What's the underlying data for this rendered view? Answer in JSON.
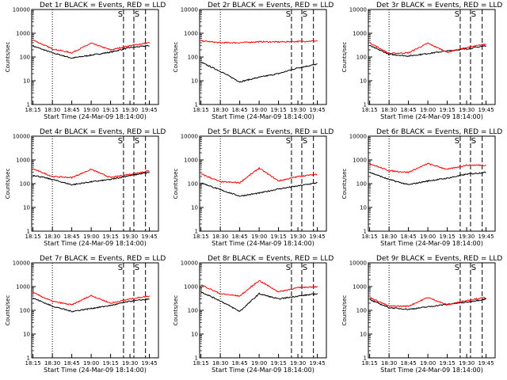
{
  "chart_data": [
    {
      "type": "line",
      "title": "Det 1r BLACK = Events, RED = LLD",
      "xlabel": "Start Time (24-Mar-09 18:14:00)",
      "ylabel": "Counts/sec",
      "yscale": "log",
      "ylim": [
        1,
        10000
      ],
      "x": [
        "18:15",
        "18:30",
        "18:45",
        "19:00",
        "19:15",
        "19:30",
        "19:45"
      ],
      "series": [
        {
          "name": "BLACK = Events",
          "color": "#000000",
          "values": [
            290,
            150,
            90,
            120,
            160,
            250,
            300
          ]
        },
        {
          "name": "RED = LLD",
          "color": "#ff0000",
          "values": [
            520,
            220,
            150,
            380,
            200,
            300,
            400
          ]
        }
      ],
      "markers": [
        "S",
        "S"
      ],
      "vlines_dotted": [
        "18:30"
      ],
      "vlines_dashed": [
        "19:25",
        "19:33",
        "19:42"
      ]
    },
    {
      "type": "line",
      "title": "Det 2r BLACK = Events, RED = LLD",
      "xlabel": "Start Time (24-Mar-09 18:14:00)",
      "ylabel": "Counts/sec",
      "yscale": "log",
      "ylim": [
        1,
        10000
      ],
      "x": [
        "18:15",
        "18:30",
        "18:45",
        "19:00",
        "19:15",
        "19:30",
        "19:45"
      ],
      "series": [
        {
          "name": "BLACK = Events",
          "color": "#000000",
          "values": [
            60,
            25,
            9,
            14,
            20,
            35,
            50
          ]
        },
        {
          "name": "RED = LLD",
          "color": "#ff0000",
          "values": [
            480,
            400,
            400,
            440,
            430,
            450,
            480
          ]
        }
      ],
      "markers": [
        "S",
        "S"
      ],
      "vlines_dotted": [
        "18:30"
      ],
      "vlines_dashed": [
        "19:25",
        "19:33",
        "19:42"
      ]
    },
    {
      "type": "line",
      "title": "Det 3r BLACK = Events, RED = LLD",
      "xlabel": "Start Time (24-Mar-09 18:14:00)",
      "ylabel": "Counts/sec",
      "yscale": "log",
      "ylim": [
        1,
        10000
      ],
      "x": [
        "18:15",
        "18:30",
        "18:45",
        "19:00",
        "19:15",
        "19:30",
        "19:45"
      ],
      "series": [
        {
          "name": "BLACK = Events",
          "color": "#000000",
          "values": [
            300,
            130,
            110,
            140,
            180,
            220,
            300
          ]
        },
        {
          "name": "RED = LLD",
          "color": "#ff0000",
          "values": [
            400,
            140,
            150,
            380,
            160,
            250,
            350
          ]
        }
      ],
      "markers": [
        "S",
        "S"
      ],
      "vlines_dotted": [
        "18:30"
      ],
      "vlines_dashed": [
        "19:25",
        "19:33",
        "19:42"
      ]
    },
    {
      "type": "line",
      "title": "Det 4r BLACK = Events, RED = LLD",
      "xlabel": "Start Time (24-Mar-09 18:14:00)",
      "ylabel": "Counts/sec",
      "yscale": "log",
      "ylim": [
        1,
        10000
      ],
      "x": [
        "18:15",
        "18:30",
        "18:45",
        "19:00",
        "19:15",
        "19:30",
        "19:45"
      ],
      "series": [
        {
          "name": "BLACK = Events",
          "color": "#000000",
          "values": [
            230,
            150,
            90,
            120,
            150,
            220,
            300
          ]
        },
        {
          "name": "RED = LLD",
          "color": "#ff0000",
          "values": [
            420,
            200,
            180,
            400,
            180,
            250,
            350
          ]
        }
      ],
      "markers": [
        "S",
        "S"
      ],
      "vlines_dotted": [
        "18:30"
      ],
      "vlines_dashed": [
        "19:25",
        "19:33",
        "19:42"
      ]
    },
    {
      "type": "line",
      "title": "Det 5r BLACK = Events, RED = LLD",
      "xlabel": "Start Time (24-Mar-09 18:14:00)",
      "ylabel": "Counts/sec",
      "yscale": "log",
      "ylim": [
        1,
        10000
      ],
      "x": [
        "18:15",
        "18:30",
        "18:45",
        "19:00",
        "19:15",
        "19:30",
        "19:45"
      ],
      "series": [
        {
          "name": "BLACK = Events",
          "color": "#000000",
          "values": [
            110,
            55,
            30,
            40,
            60,
            80,
            110
          ]
        },
        {
          "name": "RED = LLD",
          "color": "#ff0000",
          "values": [
            260,
            120,
            110,
            450,
            130,
            200,
            250
          ]
        }
      ],
      "markers": [
        "S",
        "S"
      ],
      "vlines_dotted": [
        "18:30"
      ],
      "vlines_dashed": [
        "19:25",
        "19:33",
        "19:42"
      ]
    },
    {
      "type": "line",
      "title": "Det 6r BLACK = Events, RED = LLD",
      "xlabel": "Start Time (24-Mar-09 18:14:00)",
      "ylabel": "Counts/sec",
      "yscale": "log",
      "ylim": [
        1,
        10000
      ],
      "x": [
        "18:15",
        "18:30",
        "18:45",
        "19:00",
        "19:15",
        "19:30",
        "19:45"
      ],
      "series": [
        {
          "name": "BLACK = Events",
          "color": "#000000",
          "values": [
            300,
            150,
            90,
            130,
            170,
            250,
            300
          ]
        },
        {
          "name": "RED = LLD",
          "color": "#ff0000",
          "values": [
            700,
            350,
            300,
            700,
            400,
            600,
            600
          ]
        }
      ],
      "markers": [
        "S",
        "S"
      ],
      "vlines_dotted": [
        "18:30"
      ],
      "vlines_dashed": [
        "19:25",
        "19:33",
        "19:42"
      ]
    },
    {
      "type": "line",
      "title": "Det 7r BLACK = Events, RED = LLD",
      "xlabel": "Start Time (24-Mar-09 18:14:00)",
      "ylabel": "Counts/sec",
      "yscale": "log",
      "ylim": [
        1,
        10000
      ],
      "x": [
        "18:15",
        "18:30",
        "18:45",
        "19:00",
        "19:15",
        "19:30",
        "19:45"
      ],
      "series": [
        {
          "name": "BLACK = Events",
          "color": "#000000",
          "values": [
            330,
            150,
            90,
            120,
            160,
            240,
            300
          ]
        },
        {
          "name": "RED = LLD",
          "color": "#ff0000",
          "values": [
            560,
            240,
            170,
            420,
            200,
            300,
            400
          ]
        }
      ],
      "markers": [
        "S",
        "S"
      ],
      "vlines_dotted": [
        "18:30"
      ],
      "vlines_dashed": [
        "19:25",
        "19:33",
        "19:42"
      ]
    },
    {
      "type": "line",
      "title": "Det 8r BLACK = Events, RED = LLD",
      "xlabel": "Start Time (24-Mar-09 18:14:00)",
      "ylabel": "Counts/sec",
      "yscale": "log",
      "ylim": [
        1,
        10000
      ],
      "x": [
        "18:15",
        "18:30",
        "18:45",
        "19:00",
        "19:15",
        "19:30",
        "19:45"
      ],
      "series": [
        {
          "name": "BLACK = Events",
          "color": "#000000",
          "values": [
            600,
            250,
            90,
            500,
            300,
            400,
            500
          ]
        },
        {
          "name": "RED = LLD",
          "color": "#ff0000",
          "values": [
            1200,
            500,
            400,
            1800,
            600,
            900,
            1000
          ]
        }
      ],
      "markers": [
        "S",
        "S"
      ],
      "vlines_dotted": [
        "18:30"
      ],
      "vlines_dashed": [
        "19:25",
        "19:33",
        "19:42"
      ]
    },
    {
      "type": "line",
      "title": "Det 9r BLACK = Events, RED = LLD",
      "xlabel": "Start Time (24-Mar-09 18:14:00)",
      "ylabel": "Counts/sec",
      "yscale": "log",
      "ylim": [
        1,
        10000
      ],
      "x": [
        "18:15",
        "18:30",
        "18:45",
        "19:00",
        "19:15",
        "19:30",
        "19:45"
      ],
      "series": [
        {
          "name": "BLACK = Events",
          "color": "#000000",
          "values": [
            280,
            130,
            110,
            140,
            180,
            220,
            300
          ]
        },
        {
          "name": "RED = LLD",
          "color": "#ff0000",
          "values": [
            350,
            150,
            150,
            350,
            170,
            260,
            350
          ]
        }
      ],
      "markers": [
        "S",
        "S"
      ],
      "vlines_dotted": [
        "18:30"
      ],
      "vlines_dashed": [
        "19:25",
        "19:33",
        "19:42"
      ]
    }
  ]
}
